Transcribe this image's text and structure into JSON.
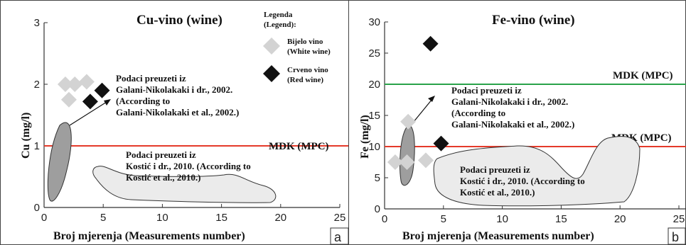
{
  "chart_data": [
    {
      "type": "scatter",
      "title": "Cu-vino (wine)",
      "xlabel": "Broj mjerenja (Measurements number)",
      "ylabel": "Cu (mg/l)",
      "xlim": [
        0,
        25
      ],
      "ylim": [
        0,
        3
      ],
      "xticks": [
        "0",
        "5",
        "10",
        "15",
        "20",
        "25"
      ],
      "yticks": [
        "0",
        "1",
        "2",
        "3"
      ],
      "panel_label": "a",
      "legend": {
        "title_line1": "Legenda",
        "title_line2": "(Legend):",
        "white_line1": "Bijelo vino",
        "white_line2": "(White wine)",
        "red_line1": "Crveno vino",
        "red_line2": "(Red wine)",
        "white_color": "#d3d3d3",
        "red_color": "#111111"
      },
      "series": [
        {
          "name": "Bijelo vino (White wine)",
          "x": [
            1.8,
            3.6,
            2.1,
            2.6
          ],
          "y": [
            2.0,
            2.04,
            1.75,
            2.0
          ]
        },
        {
          "name": "Crveno vino (Red wine)",
          "x": [
            3.9,
            4.9
          ],
          "y": [
            1.72,
            1.9
          ]
        }
      ],
      "reference_line": {
        "label": "MDK (MPC)",
        "y": 1.0,
        "color": "#e53a2a"
      },
      "annotations": {
        "galani_line1": "Podaci preuzeti iz",
        "galani_line2": "Galani-Nikolakaki i dr., 2002.",
        "galani_line3": "(According to",
        "galani_line4": "Galani-Nikolakaki et al., 2002.)",
        "kostic_line1": "Podaci preuzeti iz",
        "kostic_line2": "Kostić i dr., 2010. (According to",
        "kostic_line3": "Kostić et al., 2010.)"
      }
    },
    {
      "type": "scatter",
      "title": "Fe-vino (wine)",
      "xlabel": "Broj mjerenja (Measurements number)",
      "ylabel": "Fe (mg/l)",
      "xlim": [
        0,
        25
      ],
      "ylim": [
        0,
        30
      ],
      "xticks": [
        "0",
        "5",
        "10",
        "15",
        "20",
        "25"
      ],
      "yticks": [
        "0",
        "5",
        "10",
        "15",
        "20",
        "25",
        "30"
      ],
      "panel_label": "b",
      "series": [
        {
          "name": "Bijelo vino (White wine)",
          "x": [
            2.0,
            0.9,
            1.9,
            3.5
          ],
          "y": [
            14.0,
            7.5,
            7.5,
            7.8
          ]
        },
        {
          "name": "Crveno vino (Red wine)",
          "x": [
            3.9,
            4.8
          ],
          "y": [
            26.5,
            10.5
          ]
        }
      ],
      "reference_lines": [
        {
          "label": "MDK (MPC)",
          "y": 20,
          "color": "#2aa24a"
        },
        {
          "label": "MDK (MPC)",
          "y": 10,
          "color": "#e53a2a"
        }
      ],
      "annotations": {
        "galani_line1": "Podaci preuzeti iz",
        "galani_line2": "Galani-Nikolakaki i dr., 2002.",
        "galani_line3": "(According to",
        "galani_line4": "Galani-Nikolakaki et al., 2002.)",
        "kostic_line1": "Podaci preuzeti iz",
        "kostic_line2": "Kostić i dr., 2010. (According to",
        "kostic_line3": "Kostić et al., 2010.)"
      }
    }
  ]
}
